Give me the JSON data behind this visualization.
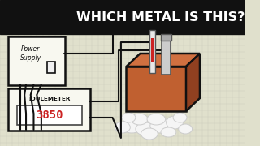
{
  "bg_color": "#e0e0cc",
  "grid_color": "#ccccbb",
  "black_bar_color": "#111111",
  "title_text": "WHICH METAL IS THIS?",
  "title_color": "#ffffff",
  "title_fontsize": 11.5,
  "power_supply_label": "Power\nSupply",
  "joulemeter_label": "JOULEMETER",
  "joulemeter_value": "3850",
  "joulemeter_display_color": "#ffffff",
  "joulemeter_value_color": "#cc2222",
  "metal_block_color": "#c06030",
  "metal_block_top": "#d07040",
  "metal_block_dark": "#904020",
  "cotton_color": "#f5f5f5",
  "cotton_edge": "#cccccc",
  "wire_color": "#111111",
  "ps_face": "#f8f8f0",
  "jm_face": "#f8f8f0"
}
